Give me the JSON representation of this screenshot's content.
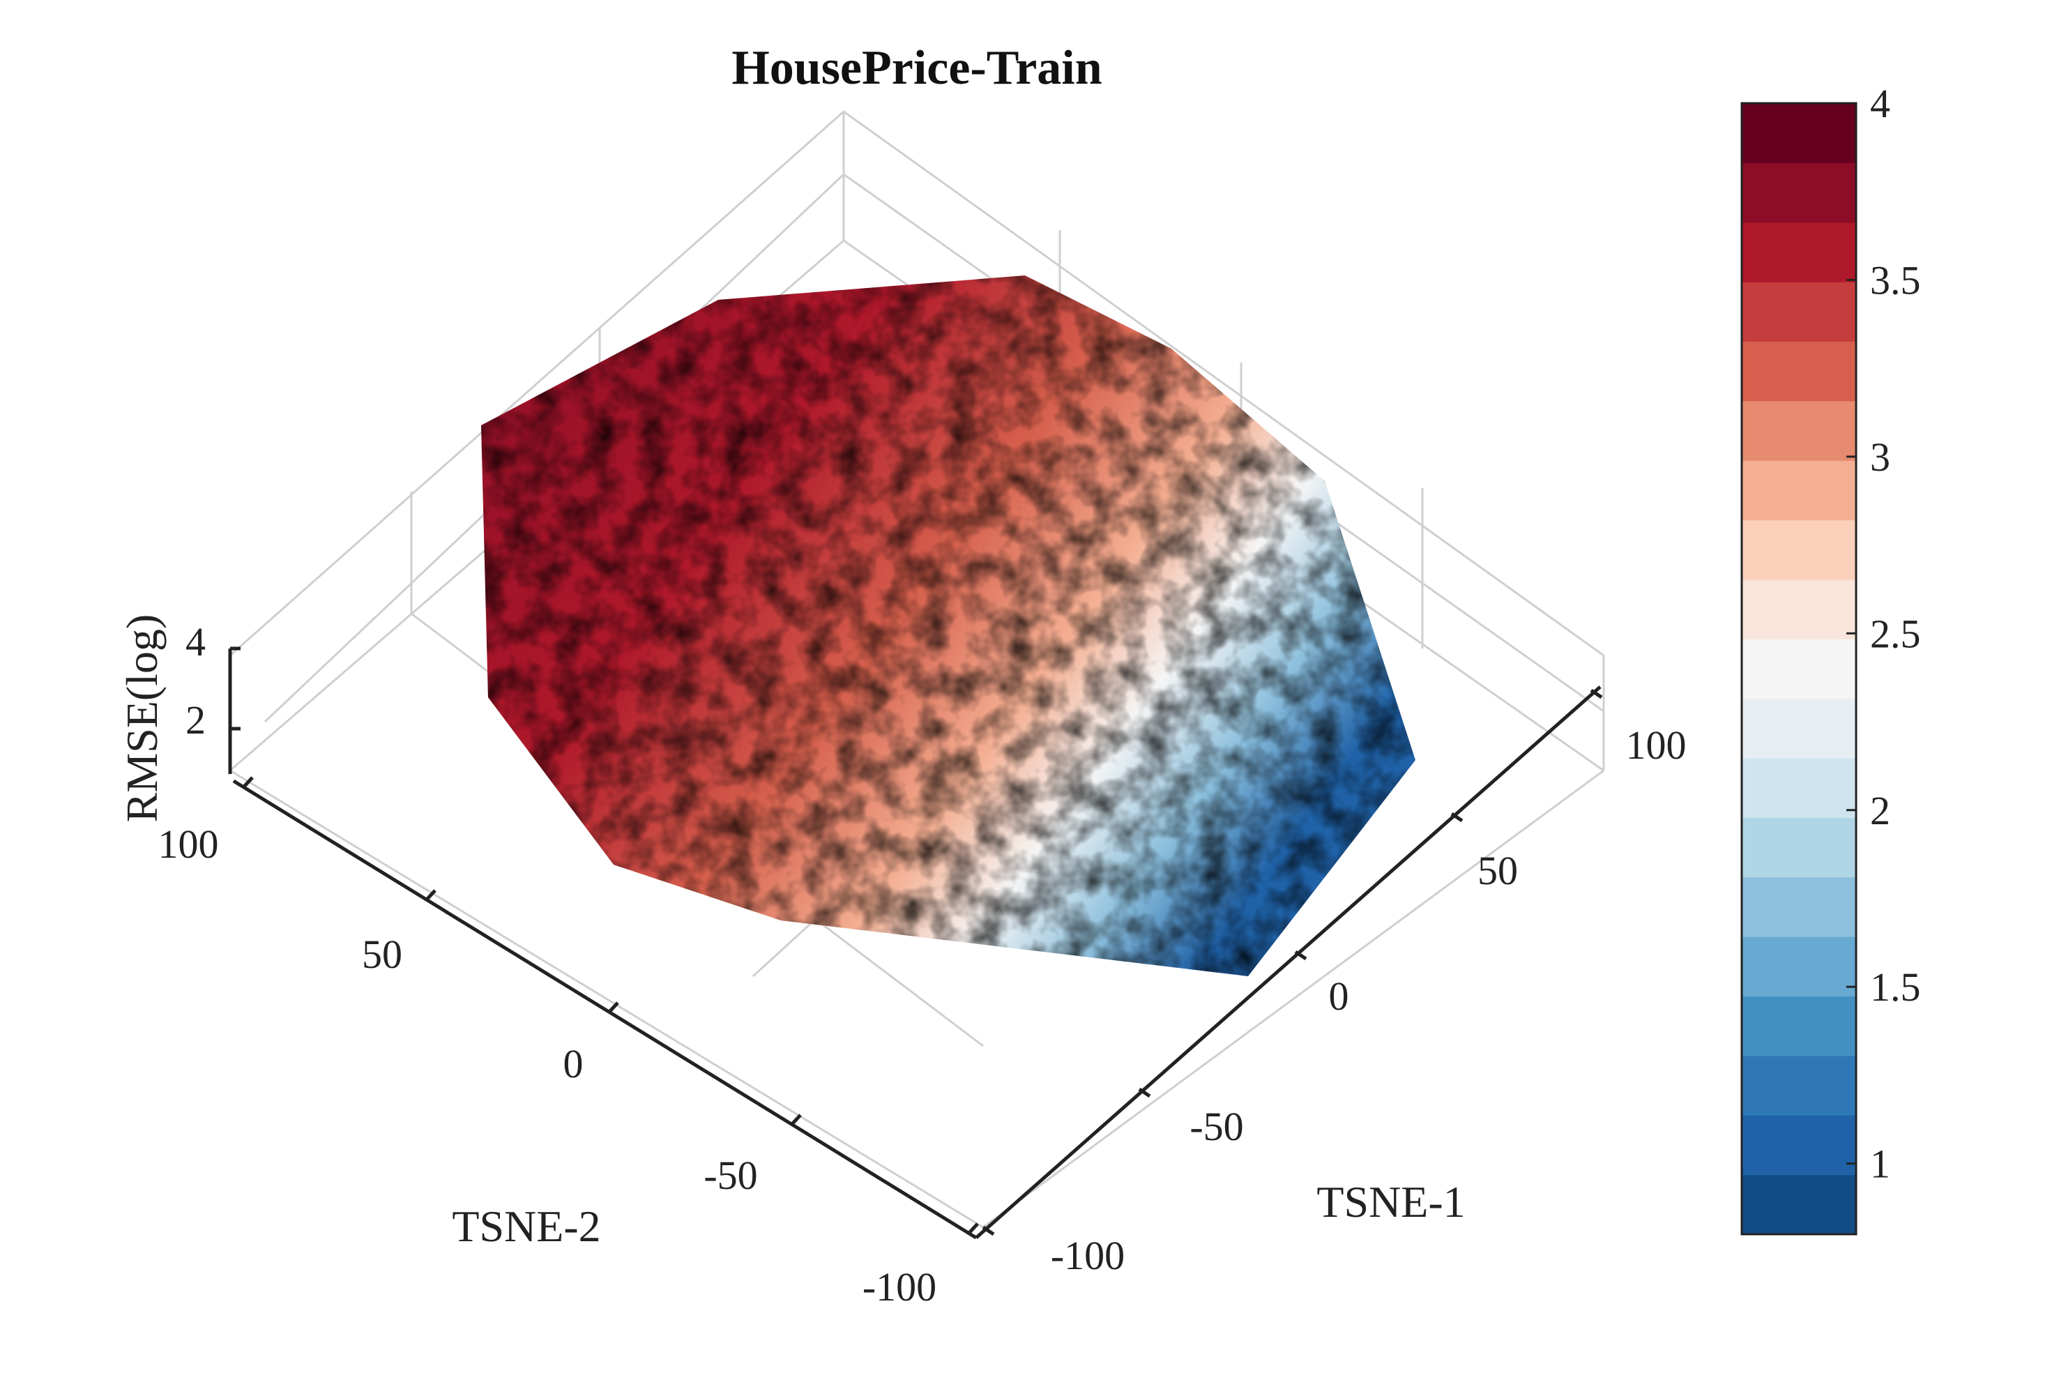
{
  "chart_data": {
    "type": "surface",
    "title": "HousePrice-Train",
    "xlabel": "TSNE-1",
    "ylabel": "TSNE-2",
    "zlabel": "RMSE(log)",
    "x_ticks": [
      "-100",
      "-50",
      "0",
      "50",
      "100"
    ],
    "y_ticks": [
      "-100",
      "-50",
      "0",
      "50",
      "100"
    ],
    "z_ticks": [
      "2",
      "4"
    ],
    "xlim": [
      -110,
      110
    ],
    "ylim": [
      -110,
      110
    ],
    "zlim": [
      1,
      4
    ],
    "grid": true,
    "colorbar": {
      "location": "right",
      "ticks": [
        "1",
        "1.5",
        "2",
        "2.5",
        "3",
        "3.5",
        "4"
      ],
      "range": [
        0.8,
        4
      ],
      "levels": 19,
      "colors": [
        "#134b86",
        "#1f62a8",
        "#2f78b7",
        "#4390c3",
        "#67a9d0",
        "#8dc0dd",
        "#b0d5e7",
        "#d0e4ef",
        "#e6eef4",
        "#f5f5f5",
        "#f9e5da",
        "#fbd0bb",
        "#f4af92",
        "#e68b6f",
        "#d6604d",
        "#c53e3d",
        "#b0182b",
        "#8c0d25",
        "#67001f"
      ]
    },
    "surface_trend": "RMSE about 3.5-4 over most of the domain (high TSNE-2), decreasing to about 1-2 toward high TSNE-1 / low TSNE-2 corner"
  }
}
